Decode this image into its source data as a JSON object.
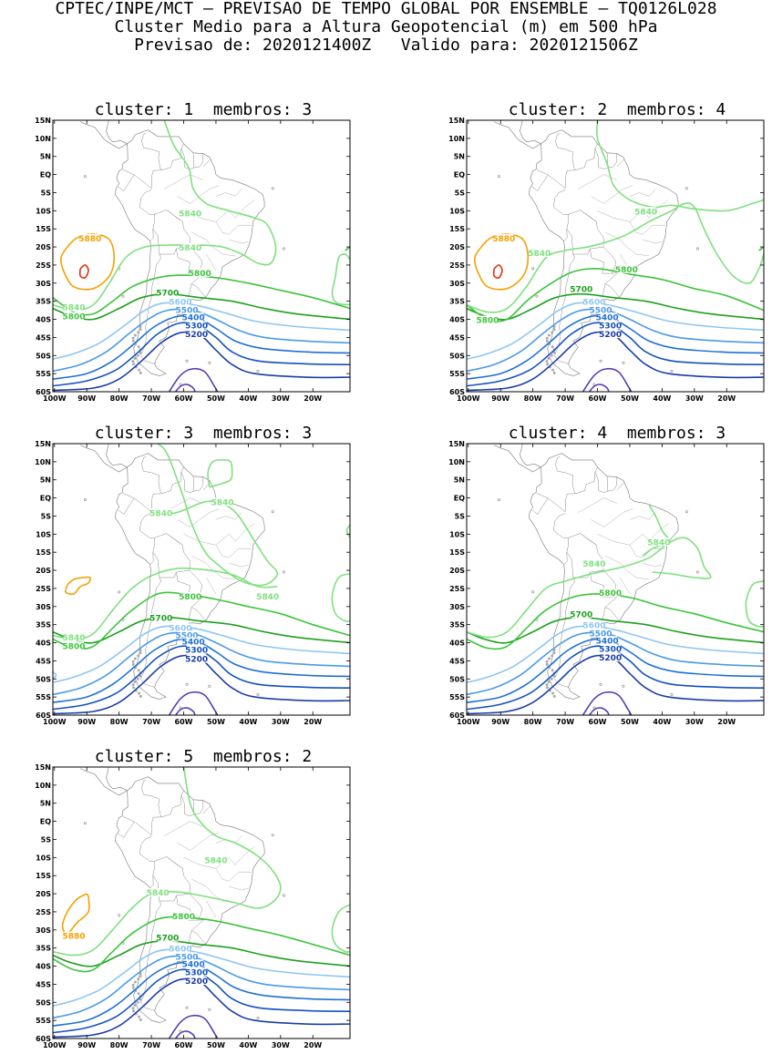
{
  "header": {
    "line1": "CPTEC/INPE/MCT – PREVISAO DE TEMPO GLOBAL POR ENSEMBLE – TQ0126L028",
    "line2": "Cluster Medio para a Altura Geopotencial (m) em 500 hPa",
    "line3": "Previsao de: 2020121400Z   Valido para: 2020121506Z"
  },
  "lat_labels": [
    "15N",
    "10N",
    "5N",
    "EQ",
    "5S",
    "10S",
    "15S",
    "20S",
    "25S",
    "30S",
    "35S",
    "40S",
    "45S",
    "50S",
    "55S",
    "60S"
  ],
  "lon_labels": [
    "100W",
    "90W",
    "80W",
    "70W",
    "60W",
    "50W",
    "40W",
    "30W",
    "20W"
  ],
  "contour_colors": {
    "5880": "#f5a000",
    "5900": "#e03010",
    "5840": "#7fe07f",
    "5800": "#3cc43c",
    "5700": "#1fa01f",
    "5600": "#8ec6f2",
    "5500": "#4a9ae8",
    "5400": "#1e6fd6",
    "5300": "#1450c0",
    "5200": "#1a3ca8",
    "5100": "#5a3cb4"
  },
  "panels": [
    {
      "title": "cluster: 1  membros: 3"
    },
    {
      "title": "cluster: 2  membros: 4"
    },
    {
      "title": "cluster: 3  membros: 3"
    },
    {
      "title": "cluster: 4  membros: 3"
    },
    {
      "title": "cluster: 5  membros: 2"
    }
  ]
}
